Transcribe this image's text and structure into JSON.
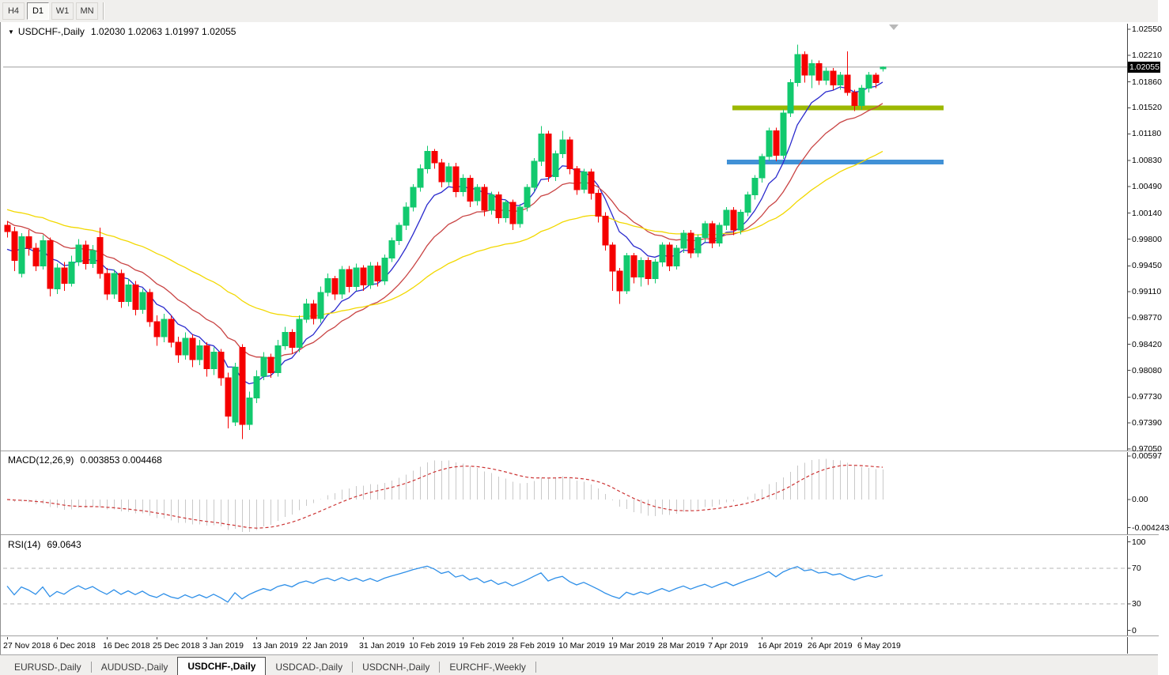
{
  "toolbar": {
    "timeframes": [
      {
        "label": "H4",
        "active": false
      },
      {
        "label": "D1",
        "active": true
      },
      {
        "label": "W1",
        "active": false
      },
      {
        "label": "MN",
        "active": false
      }
    ]
  },
  "chart_header": {
    "icon_down_triangle": "▼",
    "title": "USDCHF-,Daily",
    "ohlc_text": "1.02030 1.02063 1.01997 1.02055"
  },
  "chart_data": {
    "type": "candlestick",
    "symbol": "USDCHF-",
    "timeframe": "Daily",
    "ohlc_display": {
      "open": "1.02030",
      "high": "1.02063",
      "low": "1.01997",
      "close": "1.02055"
    },
    "current_price": "1.02055",
    "ylim": [
      0.9705,
      1.0255
    ],
    "grid": false,
    "price_axis_ticks": [
      "1.02550",
      "1.02210",
      "1.01860",
      "1.01520",
      "1.01180",
      "1.00830",
      "1.00490",
      "1.00140",
      "0.99800",
      "0.99450",
      "0.99110",
      "0.98770",
      "0.98420",
      "0.98080",
      "0.97730",
      "0.97390",
      "0.97050"
    ],
    "date_labels": [
      {
        "text": "27 Nov 2018",
        "index": 0
      },
      {
        "text": "6 Dec 2018",
        "index": 7
      },
      {
        "text": "16 Dec 2018",
        "index": 14
      },
      {
        "text": "25 Dec 2018",
        "index": 21
      },
      {
        "text": "3 Jan 2019",
        "index": 28
      },
      {
        "text": "13 Jan 2019",
        "index": 35
      },
      {
        "text": "22 Jan 2019",
        "index": 42
      },
      {
        "text": "31 Jan 2019",
        "index": 50
      },
      {
        "text": "10 Feb 2019",
        "index": 57
      },
      {
        "text": "19 Feb 2019",
        "index": 64
      },
      {
        "text": "28 Feb 2019",
        "index": 71
      },
      {
        "text": "10 Mar 2019",
        "index": 78
      },
      {
        "text": "19 Mar 2019",
        "index": 85
      },
      {
        "text": "28 Mar 2019",
        "index": 92
      },
      {
        "text": "7 Apr 2019",
        "index": 99
      },
      {
        "text": "16 Apr 2019",
        "index": 106
      },
      {
        "text": "26 Apr 2019",
        "index": 113
      },
      {
        "text": "6 May 2019",
        "index": 120
      }
    ],
    "candles": [
      [
        0.9998,
        1.0004,
        0.9982,
        0.999
      ],
      [
        0.999,
        0.9996,
        0.9938,
        0.9952
      ],
      [
        0.9935,
        0.9988,
        0.993,
        0.9983
      ],
      [
        0.9983,
        0.9992,
        0.9958,
        0.9968
      ],
      [
        0.9968,
        0.9975,
        0.9938,
        0.9945
      ],
      [
        0.9945,
        0.9985,
        0.994,
        0.9978
      ],
      [
        0.9978,
        0.9982,
        0.9905,
        0.9915
      ],
      [
        0.9915,
        0.9948,
        0.9908,
        0.9942
      ],
      [
        0.9942,
        0.995,
        0.9912,
        0.9922
      ],
      [
        0.9922,
        0.9958,
        0.9918,
        0.995
      ],
      [
        0.995,
        0.998,
        0.9945,
        0.9972
      ],
      [
        0.9972,
        0.9978,
        0.994,
        0.9948
      ],
      [
        0.9948,
        0.9972,
        0.9942,
        0.9965
      ],
      [
        0.9982,
        0.9995,
        0.9928,
        0.9935
      ],
      [
        0.9935,
        0.9942,
        0.99,
        0.9908
      ],
      [
        0.9908,
        0.994,
        0.9902,
        0.9935
      ],
      [
        0.9935,
        0.994,
        0.989,
        0.9898
      ],
      [
        0.9898,
        0.9928,
        0.9892,
        0.992
      ],
      [
        0.992,
        0.9925,
        0.988,
        0.9888
      ],
      [
        0.9888,
        0.9915,
        0.9882,
        0.991
      ],
      [
        0.991,
        0.9915,
        0.9865,
        0.9872
      ],
      [
        0.9872,
        0.988,
        0.984,
        0.9852
      ],
      [
        0.9852,
        0.9882,
        0.9845,
        0.9875
      ],
      [
        0.9875,
        0.988,
        0.9838,
        0.9845
      ],
      [
        0.9845,
        0.9852,
        0.9818,
        0.9828
      ],
      [
        0.9828,
        0.9858,
        0.9822,
        0.985
      ],
      [
        0.985,
        0.9855,
        0.9812,
        0.9822
      ],
      [
        0.9822,
        0.9848,
        0.9815,
        0.984
      ],
      [
        0.984,
        0.9845,
        0.98,
        0.981
      ],
      [
        0.981,
        0.9838,
        0.9802,
        0.9832
      ],
      [
        0.9832,
        0.9836,
        0.9788,
        0.9798
      ],
      [
        0.9798,
        0.9805,
        0.9732,
        0.9748
      ],
      [
        0.974,
        0.9818,
        0.9735,
        0.9812
      ],
      [
        0.9838,
        0.9842,
        0.9718,
        0.9737
      ],
      [
        0.9737,
        0.978,
        0.973,
        0.9772
      ],
      [
        0.9772,
        0.9808,
        0.9765,
        0.98
      ],
      [
        0.98,
        0.9832,
        0.9795,
        0.9825
      ],
      [
        0.9825,
        0.983,
        0.9798,
        0.9805
      ],
      [
        0.9805,
        0.9848,
        0.98,
        0.984
      ],
      [
        0.984,
        0.9865,
        0.9835,
        0.9858
      ],
      [
        0.9858,
        0.9862,
        0.983,
        0.9838
      ],
      [
        0.9838,
        0.988,
        0.9832,
        0.9875
      ],
      [
        0.9875,
        0.9902,
        0.987,
        0.9895
      ],
      [
        0.9895,
        0.99,
        0.9868,
        0.9876
      ],
      [
        0.9876,
        0.9918,
        0.987,
        0.991
      ],
      [
        0.991,
        0.9935,
        0.9905,
        0.9928
      ],
      [
        0.9928,
        0.9932,
        0.99,
        0.9908
      ],
      [
        0.9908,
        0.9945,
        0.9902,
        0.994
      ],
      [
        0.994,
        0.9945,
        0.991,
        0.9918
      ],
      [
        0.9918,
        0.9948,
        0.9912,
        0.9942
      ],
      [
        0.9942,
        0.9946,
        0.9912,
        0.992
      ],
      [
        0.992,
        0.995,
        0.9915,
        0.9945
      ],
      [
        0.9945,
        0.995,
        0.9918,
        0.9925
      ],
      [
        0.9925,
        0.996,
        0.992,
        0.9955
      ],
      [
        0.9955,
        0.9982,
        0.995,
        0.9978
      ],
      [
        0.9978,
        1.0002,
        0.9972,
        0.9998
      ],
      [
        0.9998,
        1.0028,
        0.9992,
        1.0022
      ],
      [
        1.0022,
        1.0052,
        1.0016,
        1.0048
      ],
      [
        1.0048,
        1.0078,
        1.0042,
        1.0072
      ],
      [
        1.0072,
        1.0102,
        1.0066,
        1.0095
      ],
      [
        1.0095,
        1.0098,
        1.0072,
        1.008
      ],
      [
        1.008,
        1.0085,
        1.0048,
        1.0055
      ],
      [
        1.0055,
        1.008,
        1.005,
        1.0075
      ],
      [
        1.0075,
        1.008,
        1.0035,
        1.0042
      ],
      [
        1.0042,
        1.0065,
        1.0036,
        1.006
      ],
      [
        1.006,
        1.0064,
        1.0022,
        1.003
      ],
      [
        1.003,
        1.0052,
        1.0024,
        1.0048
      ],
      [
        1.0048,
        1.0052,
        1.001,
        1.0018
      ],
      [
        1.0018,
        1.0042,
        1.0012,
        1.0038
      ],
      [
        1.0038,
        1.0042,
        1.0,
        1.0008
      ],
      [
        1.0008,
        1.0032,
        1.0002,
        1.0028
      ],
      [
        1.0028,
        1.0032,
        0.9992,
        1.0
      ],
      [
        1.0,
        1.0026,
        0.9995,
        1.0022
      ],
      [
        1.0022,
        1.0052,
        1.0016,
        1.0048
      ],
      [
        1.0048,
        1.0086,
        1.0042,
        1.0082
      ],
      [
        1.0082,
        1.0128,
        1.0076,
        1.0118
      ],
      [
        1.0118,
        1.0122,
        1.0055,
        1.0062
      ],
      [
        1.0062,
        1.0096,
        1.0056,
        1.0092
      ],
      [
        1.0092,
        1.0122,
        1.0086,
        1.011
      ],
      [
        1.011,
        1.0114,
        1.0065,
        1.0072
      ],
      [
        1.0072,
        1.0076,
        1.0038,
        1.0045
      ],
      [
        1.0045,
        1.0072,
        1.004,
        1.0068
      ],
      [
        1.0068,
        1.0072,
        1.0032,
        1.004
      ],
      [
        1.004,
        1.0045,
        1.0002,
        1.001
      ],
      [
        1.001,
        1.0015,
        0.9965,
        0.9972
      ],
      [
        0.9972,
        0.9976,
        0.9912,
        0.9938
      ],
      [
        0.9938,
        0.9942,
        0.9895,
        0.9912
      ],
      [
        0.9912,
        0.9962,
        0.9908,
        0.9958
      ],
      [
        0.9958,
        0.9962,
        0.9922,
        0.993
      ],
      [
        0.993,
        0.9956,
        0.9918,
        0.9952
      ],
      [
        0.9952,
        0.9956,
        0.992,
        0.9928
      ],
      [
        0.9928,
        0.9954,
        0.9922,
        0.995
      ],
      [
        0.995,
        0.9976,
        0.9944,
        0.9972
      ],
      [
        0.9972,
        0.9976,
        0.9938,
        0.9945
      ],
      [
        0.9945,
        0.9972,
        0.994,
        0.9968
      ],
      [
        0.9968,
        0.9992,
        0.9962,
        0.9988
      ],
      [
        0.9988,
        0.9992,
        0.9955,
        0.9962
      ],
      [
        0.9962,
        0.9986,
        0.9956,
        0.9982
      ],
      [
        0.9982,
        1.0004,
        0.9976,
        1.0
      ],
      [
        1.0,
        1.0004,
        0.9968,
        0.9975
      ],
      [
        0.9975,
        1.0002,
        0.997,
        0.9998
      ],
      [
        0.9998,
        1.0022,
        0.9992,
        1.0018
      ],
      [
        1.0018,
        1.0022,
        0.9985,
        0.9992
      ],
      [
        0.9992,
        1.0019,
        0.9986,
        1.0015
      ],
      [
        1.0015,
        1.0042,
        1.001,
        1.0038
      ],
      [
        1.0038,
        1.0064,
        1.0032,
        1.006
      ],
      [
        1.006,
        1.0092,
        1.0054,
        1.0088
      ],
      [
        1.0088,
        1.0126,
        1.0082,
        1.0122
      ],
      [
        1.0122,
        1.0126,
        1.0082,
        1.009
      ],
      [
        1.009,
        1.015,
        1.0085,
        1.0145
      ],
      [
        1.0145,
        1.019,
        1.014,
        1.0185
      ],
      [
        1.0185,
        1.0235,
        1.018,
        1.0222
      ],
      [
        1.0222,
        1.0226,
        1.0185,
        1.0195
      ],
      [
        1.0195,
        1.0215,
        1.0178,
        1.021
      ],
      [
        1.021,
        1.0214,
        1.0182,
        1.0188
      ],
      [
        1.0188,
        1.0205,
        1.0182,
        1.02
      ],
      [
        1.02,
        1.0204,
        1.0175,
        1.0182
      ],
      [
        1.0182,
        1.0199,
        1.0176,
        1.0195
      ],
      [
        1.0195,
        1.0226,
        1.0168,
        1.0172
      ],
      [
        1.0172,
        1.0176,
        1.0148,
        1.0155
      ],
      [
        1.0155,
        1.0182,
        1.015,
        1.0178
      ],
      [
        1.0178,
        1.0199,
        1.0172,
        1.0195
      ],
      [
        1.0195,
        1.0198,
        1.0178,
        1.0185
      ],
      [
        1.0203,
        1.02063,
        1.01997,
        1.02055
      ]
    ],
    "candle_colors": {
      "up": "#12C96E",
      "down": "#F50000"
    },
    "moving_averages": [
      {
        "name": "fast-ma",
        "color": "#2A2ACD",
        "period": 8,
        "seed_offset": -0.003
      },
      {
        "name": "mid-ma",
        "color": "#C94444",
        "period": 18,
        "seed_offset": 0.0015
      },
      {
        "name": "slow-ma",
        "color": "#F2D800",
        "period": 45,
        "seed_offset": 0.003
      }
    ],
    "overlay_lines": [
      {
        "name": "resistance-line",
        "color": "#9CB800",
        "price": 1.0152,
        "x1": 925,
        "x2": 1192
      },
      {
        "name": "support-line",
        "color": "#4191D6",
        "price": 1.0081,
        "x1": 918,
        "x2": 1192
      }
    ],
    "current_price_line_color": "#BEBEBE",
    "indicators": {
      "macd": {
        "label": "MACD(12,26,9)",
        "values_text": "0.003853 0.004468",
        "axis_ticks": [
          "0.00597",
          "0.00",
          "-0.004243"
        ],
        "params": [
          12,
          26,
          9
        ],
        "histogram_color": "#C9C9C9",
        "signal_color": "#CC3333"
      },
      "rsi": {
        "label": "RSI(14)",
        "values_text": "69.0643",
        "axis_ticks": [
          "100",
          "70",
          "30",
          "0"
        ],
        "period": 14,
        "levels": [
          70,
          30
        ],
        "color": "#2E8FE8",
        "level_color": "#B4B4B4"
      }
    }
  },
  "tabbar": {
    "items": [
      {
        "label": "EURUSD-,Daily",
        "active": false
      },
      {
        "label": "AUDUSD-,Daily",
        "active": false
      },
      {
        "label": "USDCHF-,Daily",
        "active": true
      },
      {
        "label": "USDCAD-,Daily",
        "active": false
      },
      {
        "label": "USDCNH-,Daily",
        "active": false
      },
      {
        "label": "EURCHF-,Weekly",
        "active": false
      }
    ]
  }
}
